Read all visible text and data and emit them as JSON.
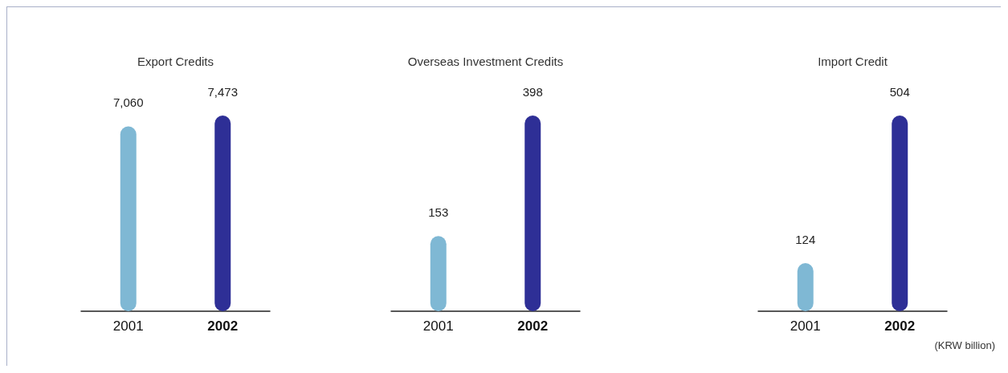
{
  "chart_data": [
    {
      "type": "bar",
      "title": "Export Credits",
      "categories": [
        "2001",
        "2002"
      ],
      "values": [
        7060,
        7473
      ],
      "value_labels": [
        "7,060",
        "7,473"
      ],
      "colors": [
        "#7fb8d4",
        "#2e2f96"
      ]
    },
    {
      "type": "bar",
      "title": "Overseas Investment Credits",
      "categories": [
        "2001",
        "2002"
      ],
      "values": [
        153,
        398
      ],
      "colors": [
        "#7fb8d4",
        "#2e2f96"
      ],
      "data_labels": true
    },
    {
      "type": "bar",
      "title": "Import Credit",
      "categories": [
        "2001",
        "2002"
      ],
      "values": [
        124,
        504
      ],
      "colors": [
        "#7fb8d4",
        "#2e2f96"
      ],
      "data_labels": true,
      "annotations": [
        "(KRW billion)"
      ]
    }
  ]
}
